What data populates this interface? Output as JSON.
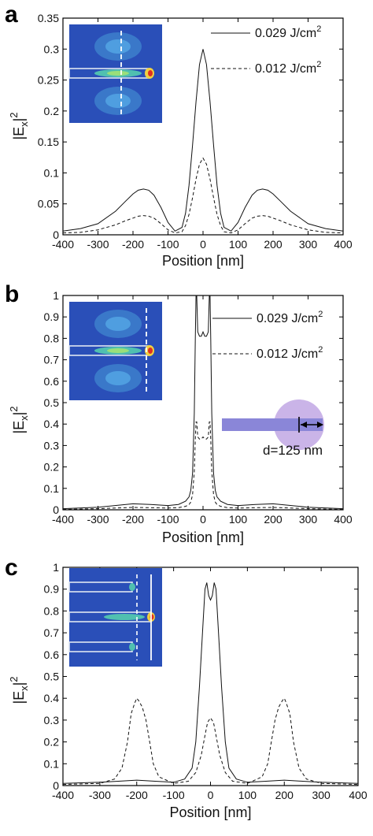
{
  "chart_data": [
    {
      "panel": "a",
      "type": "line",
      "xlabel": "Position [nm]",
      "ylabel": "|E",
      "ylabel_sub": "x",
      "ylabel_sup": "2",
      "xlim": [
        -400,
        400
      ],
      "ylim": [
        0,
        0.35
      ],
      "x_ticks": [
        -400,
        -300,
        -200,
        -100,
        0,
        100,
        200,
        300,
        400
      ],
      "y_ticks": [
        0,
        0.05,
        0.1,
        0.15,
        0.2,
        0.25,
        0.3,
        0.35
      ],
      "y_tick_labels": [
        "0",
        "0.05",
        "0.1",
        "0.15",
        "0.2",
        "0.25",
        "0.3",
        "0.35"
      ],
      "inset": "single-wire-centerline",
      "legend": [
        {
          "label": "0.029 J/cm",
          "sup": "2",
          "style": "solid"
        },
        {
          "label": "0.012 J/cm",
          "sup": "2",
          "style": "dashed"
        }
      ],
      "series": [
        {
          "name": "0.029 J/cm2",
          "style": "solid",
          "x": [
            -400,
            -350,
            -300,
            -250,
            -220,
            -200,
            -185,
            -170,
            -155,
            -140,
            -120,
            -100,
            -80,
            -60,
            -50,
            -40,
            -30,
            -20,
            -10,
            0,
            10,
            20,
            30,
            40,
            50,
            60,
            80,
            100,
            120,
            140,
            155,
            170,
            185,
            200,
            220,
            250,
            300,
            350,
            400
          ],
          "y": [
            0.006,
            0.01,
            0.018,
            0.038,
            0.055,
            0.066,
            0.072,
            0.074,
            0.072,
            0.064,
            0.044,
            0.02,
            0.006,
            0.012,
            0.035,
            0.08,
            0.145,
            0.215,
            0.275,
            0.3,
            0.275,
            0.215,
            0.145,
            0.08,
            0.035,
            0.012,
            0.006,
            0.02,
            0.044,
            0.064,
            0.072,
            0.074,
            0.072,
            0.066,
            0.055,
            0.038,
            0.018,
            0.01,
            0.006
          ]
        },
        {
          "name": "0.012 J/cm2",
          "style": "dashed",
          "x": [
            -400,
            -350,
            -300,
            -250,
            -220,
            -200,
            -185,
            -170,
            -155,
            -140,
            -120,
            -100,
            -80,
            -60,
            -50,
            -40,
            -30,
            -20,
            -10,
            0,
            10,
            20,
            30,
            40,
            50,
            60,
            80,
            100,
            120,
            140,
            155,
            170,
            185,
            200,
            220,
            250,
            300,
            350,
            400
          ],
          "y": [
            0.003,
            0.004,
            0.008,
            0.016,
            0.023,
            0.027,
            0.03,
            0.031,
            0.03,
            0.027,
            0.018,
            0.008,
            0.003,
            0.005,
            0.015,
            0.033,
            0.06,
            0.09,
            0.114,
            0.124,
            0.114,
            0.09,
            0.06,
            0.033,
            0.015,
            0.005,
            0.003,
            0.008,
            0.018,
            0.027,
            0.03,
            0.031,
            0.03,
            0.027,
            0.023,
            0.016,
            0.008,
            0.004,
            0.003
          ]
        }
      ]
    },
    {
      "panel": "b",
      "type": "line",
      "xlabel": "Position [nm]",
      "ylabel": "|E",
      "ylabel_sub": "x",
      "ylabel_sup": "2",
      "xlim": [
        -400,
        400
      ],
      "ylim": [
        0,
        1
      ],
      "x_ticks": [
        -400,
        -300,
        -200,
        -100,
        0,
        100,
        200,
        300,
        400
      ],
      "y_ticks": [
        0,
        0.1,
        0.2,
        0.3,
        0.4,
        0.5,
        0.6,
        0.7,
        0.8,
        0.9,
        1
      ],
      "y_tick_labels": [
        "0",
        "0.1",
        "0.2",
        "0.3",
        "0.4",
        "0.5",
        "0.6",
        "0.7",
        "0.8",
        "0.9",
        "1"
      ],
      "inset": "single-wire-tip",
      "legend": [
        {
          "label": "0.029 J/cm",
          "sup": "2",
          "style": "solid"
        },
        {
          "label": "0.012 J/cm",
          "sup": "2",
          "style": "dashed"
        }
      ],
      "annotation": "d=125 nm",
      "series": [
        {
          "name": "0.029 J/cm2",
          "style": "solid",
          "x": [
            -400,
            -300,
            -200,
            -150,
            -100,
            -70,
            -50,
            -40,
            -35,
            -30,
            -25,
            -22,
            -20,
            -18,
            -15,
            -10,
            -5,
            0,
            5,
            10,
            15,
            18,
            20,
            22,
            25,
            30,
            35,
            40,
            50,
            70,
            100,
            150,
            200,
            300,
            400
          ],
          "y": [
            0.005,
            0.012,
            0.028,
            0.025,
            0.02,
            0.025,
            0.04,
            0.06,
            0.09,
            0.17,
            0.45,
            0.8,
            1.0,
            1.0,
            0.83,
            0.81,
            0.81,
            0.83,
            0.81,
            0.81,
            0.83,
            1.0,
            1.0,
            0.8,
            0.45,
            0.17,
            0.09,
            0.06,
            0.04,
            0.025,
            0.02,
            0.025,
            0.028,
            0.012,
            0.005
          ]
        },
        {
          "name": "0.012 J/cm2",
          "style": "dashed",
          "x": [
            -400,
            -300,
            -200,
            -150,
            -100,
            -70,
            -50,
            -40,
            -35,
            -30,
            -25,
            -22,
            -20,
            -18,
            -15,
            -10,
            -5,
            0,
            5,
            10,
            15,
            18,
            20,
            22,
            25,
            30,
            35,
            40,
            50,
            70,
            100,
            150,
            200,
            300,
            400
          ],
          "y": [
            0.002,
            0.005,
            0.011,
            0.01,
            0.008,
            0.01,
            0.016,
            0.024,
            0.036,
            0.07,
            0.18,
            0.33,
            0.41,
            0.41,
            0.34,
            0.33,
            0.33,
            0.34,
            0.33,
            0.33,
            0.34,
            0.41,
            0.41,
            0.33,
            0.18,
            0.07,
            0.036,
            0.024,
            0.016,
            0.01,
            0.008,
            0.01,
            0.011,
            0.005,
            0.002
          ]
        }
      ]
    },
    {
      "panel": "c",
      "type": "line",
      "xlabel": "Position [nm]",
      "ylabel": "|E",
      "ylabel_sub": "x",
      "ylabel_sup": "2",
      "xlim": [
        -400,
        400
      ],
      "ylim": [
        0,
        1
      ],
      "x_ticks": [
        -400,
        -300,
        -200,
        -100,
        0,
        100,
        200,
        300,
        400
      ],
      "y_ticks": [
        0,
        0.1,
        0.2,
        0.3,
        0.4,
        0.5,
        0.6,
        0.7,
        0.8,
        0.9,
        1
      ],
      "y_tick_labels": [
        "0",
        "0.1",
        "0.2",
        "0.3",
        "0.4",
        "0.5",
        "0.6",
        "0.7",
        "0.8",
        "0.9",
        "1"
      ],
      "inset": "three-wire",
      "series": [
        {
          "name": "solid",
          "style": "solid",
          "x": [
            -400,
            -300,
            -250,
            -200,
            -150,
            -100,
            -70,
            -50,
            -40,
            -30,
            -20,
            -15,
            -10,
            -5,
            0,
            5,
            10,
            15,
            20,
            30,
            40,
            50,
            70,
            100,
            150,
            200,
            250,
            300,
            400
          ],
          "y": [
            0.01,
            0.015,
            0.02,
            0.025,
            0.02,
            0.015,
            0.03,
            0.08,
            0.2,
            0.45,
            0.75,
            0.9,
            0.93,
            0.87,
            0.85,
            0.87,
            0.93,
            0.9,
            0.75,
            0.45,
            0.2,
            0.08,
            0.03,
            0.015,
            0.02,
            0.025,
            0.02,
            0.015,
            0.01
          ]
        },
        {
          "name": "dashed",
          "style": "dashed",
          "x": [
            -400,
            -300,
            -260,
            -240,
            -225,
            -215,
            -205,
            -200,
            -195,
            -185,
            -175,
            -165,
            -155,
            -140,
            -100,
            -60,
            -40,
            -25,
            -15,
            -8,
            0,
            8,
            15,
            25,
            40,
            60,
            100,
            140,
            155,
            165,
            175,
            185,
            195,
            200,
            205,
            215,
            225,
            240,
            260,
            300,
            400
          ],
          "y": [
            0.005,
            0.01,
            0.03,
            0.08,
            0.2,
            0.33,
            0.38,
            0.4,
            0.39,
            0.36,
            0.3,
            0.2,
            0.1,
            0.04,
            0.01,
            0.02,
            0.06,
            0.14,
            0.23,
            0.29,
            0.31,
            0.29,
            0.23,
            0.14,
            0.06,
            0.02,
            0.01,
            0.04,
            0.1,
            0.2,
            0.3,
            0.36,
            0.39,
            0.4,
            0.38,
            0.33,
            0.2,
            0.08,
            0.03,
            0.01,
            0.005
          ]
        }
      ]
    }
  ]
}
